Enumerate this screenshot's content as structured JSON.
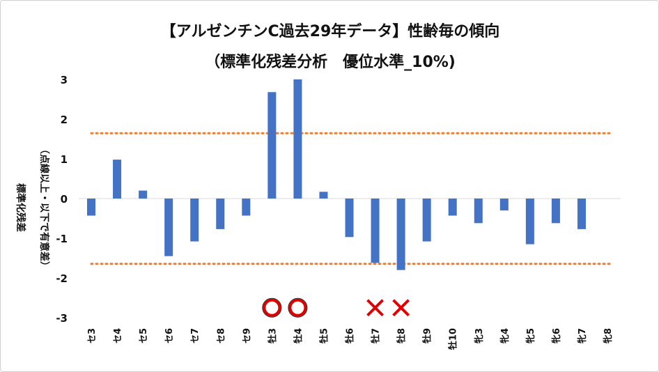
{
  "chart_data": {
    "type": "bar",
    "title": "【アルゼンチンC過去29年データ】性齢毎の傾向",
    "subtitle": "（標準化残差分析　優位水準_10%)",
    "ylabel_line1": "標準化残差",
    "ylabel_line2": "（点線以上・以下で有意差）",
    "ylim": [
      -3,
      3
    ],
    "yticks": [
      3,
      2,
      1,
      0,
      -1,
      -2,
      -3
    ],
    "categories": [
      "セ3",
      "セ4",
      "セ5",
      "セ6",
      "セ7",
      "セ8",
      "セ9",
      "牡3",
      "牡4",
      "牡5",
      "牡6",
      "牡7",
      "牡8",
      "牡9",
      "牡10",
      "牝3",
      "牝4",
      "牝5",
      "牝6",
      "牝7",
      "牝8"
    ],
    "values": [
      -0.43,
      0.98,
      0.2,
      -1.45,
      -1.08,
      -0.77,
      -0.43,
      2.68,
      3.0,
      0.17,
      -0.97,
      -1.62,
      -1.8,
      -1.08,
      -0.43,
      -0.62,
      -0.3,
      -1.15,
      -0.62,
      -0.77,
      0
    ],
    "thresholds": [
      1.645,
      -1.645
    ],
    "markers": [
      {
        "category": "牡3",
        "symbol": "circle",
        "y": -2.75
      },
      {
        "category": "牡4",
        "symbol": "circle",
        "y": -2.75
      },
      {
        "category": "牡7",
        "symbol": "cross",
        "y": -2.75
      },
      {
        "category": "牡8",
        "symbol": "cross",
        "y": -2.75
      }
    ],
    "colors": {
      "bar": "#4472C4",
      "threshold": "#ED7D31",
      "marker": "#E00000"
    }
  }
}
